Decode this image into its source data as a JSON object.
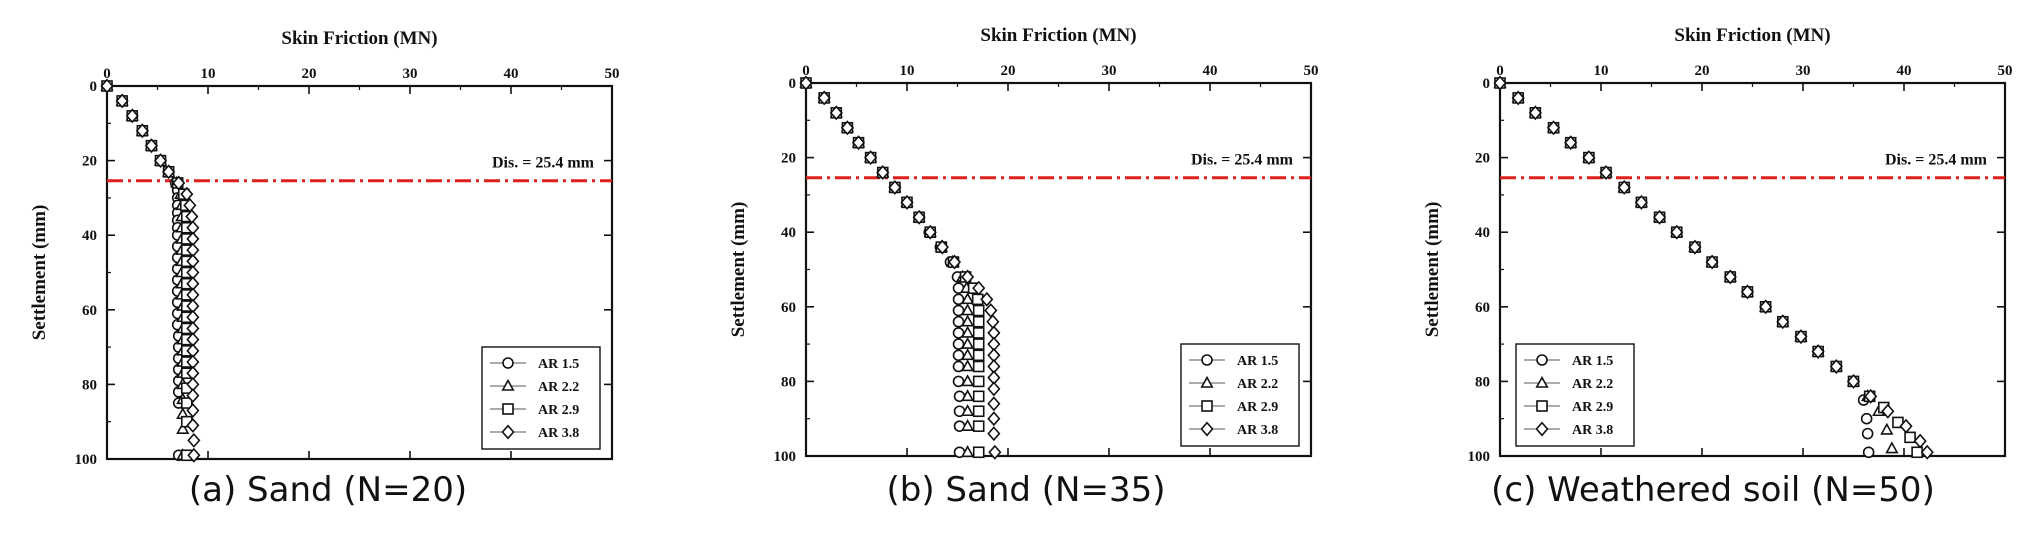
{
  "chart_data": [
    {
      "type": "scatter",
      "caption": "(a) Sand (N=20)",
      "title": "Skin Friction (MN)",
      "xlabel": "Skin Friction (MN)",
      "ylabel": "Settlement (mm)",
      "xlim": [
        0,
        50
      ],
      "ylim": [
        0,
        100
      ],
      "x_ticks": [
        "0",
        "10",
        "20",
        "30",
        "40",
        "50"
      ],
      "y_ticks": [
        "0",
        "20",
        "40",
        "60",
        "80",
        "100"
      ],
      "x_axis_position": "top",
      "y_axis_inverted": true,
      "grid": false,
      "legend_position": "bottom-right",
      "reference_line": {
        "label": "Dis. = 25.4 mm",
        "y": 25.4,
        "color": "#e0201b",
        "style": "dash-dot"
      },
      "series": [
        {
          "name": "AR 1.5",
          "marker": "circle",
          "x": [
            0,
            1.5,
            2.5,
            3.5,
            4.4,
            5.3,
            6.1,
            6.8,
            7.0,
            7.0,
            7.0,
            7.0,
            7.0,
            7.0,
            7.0,
            7.0,
            7.0,
            7.0,
            7.0,
            7.0,
            7.0,
            7.0,
            7.0,
            7.1,
            7.1,
            7.1,
            7.1,
            7.1,
            7.1,
            7.1,
            7.1
          ],
          "y": [
            0,
            4,
            8,
            12,
            16,
            20,
            23,
            26,
            28,
            30,
            32,
            34,
            36,
            38,
            40,
            43,
            46,
            49,
            52,
            55,
            58,
            61,
            64,
            67,
            70,
            73,
            76,
            79,
            82,
            85,
            99
          ]
        },
        {
          "name": "AR 2.2",
          "marker": "triangle",
          "x": [
            0,
            1.5,
            2.5,
            3.5,
            4.4,
            5.3,
            6.1,
            6.9,
            7.3,
            7.4,
            7.4,
            7.4,
            7.4,
            7.4,
            7.4,
            7.4,
            7.4,
            7.4,
            7.5,
            7.5,
            7.5,
            7.5,
            7.5,
            7.5,
            7.5,
            7.5,
            7.5,
            7.5,
            7.5,
            7.5
          ],
          "y": [
            0,
            4,
            8,
            12,
            16,
            20,
            23,
            26,
            29,
            32,
            35,
            38,
            41,
            44,
            47,
            50,
            53,
            56,
            59,
            62,
            65,
            68,
            71,
            74,
            77,
            80,
            84,
            88,
            92,
            99
          ]
        },
        {
          "name": "AR 2.9",
          "marker": "square",
          "x": [
            0,
            1.5,
            2.5,
            3.5,
            4.4,
            5.3,
            6.1,
            7.0,
            7.6,
            7.8,
            7.9,
            7.9,
            7.9,
            7.9,
            7.9,
            7.9,
            7.9,
            7.9,
            7.9,
            7.9,
            7.9,
            7.9,
            7.9,
            7.9,
            7.9,
            7.9,
            7.9,
            7.9,
            7.9
          ],
          "y": [
            0,
            4,
            8,
            12,
            16,
            20,
            23,
            26,
            29,
            32,
            35,
            38,
            41,
            44,
            47,
            50,
            53,
            56,
            59,
            62,
            65,
            68,
            71,
            74,
            77,
            81,
            85,
            90,
            99
          ]
        },
        {
          "name": "AR 3.8",
          "marker": "diamond",
          "x": [
            0,
            1.5,
            2.5,
            3.5,
            4.4,
            5.3,
            6.1,
            7.1,
            7.9,
            8.2,
            8.4,
            8.5,
            8.5,
            8.5,
            8.5,
            8.5,
            8.5,
            8.5,
            8.5,
            8.5,
            8.5,
            8.5,
            8.5,
            8.5,
            8.5,
            8.5,
            8.5,
            8.5,
            8.5,
            8.6,
            8.6
          ],
          "y": [
            0,
            4,
            8,
            12,
            16,
            20,
            23,
            26,
            29,
            32,
            35,
            38,
            41,
            44,
            47,
            50,
            53,
            56,
            59,
            62,
            65,
            68,
            71,
            74,
            77,
            80,
            83,
            87,
            91,
            95,
            99
          ]
        }
      ]
    },
    {
      "type": "scatter",
      "caption": "(b) Sand (N=35)",
      "title": "Skin Friction (MN)",
      "xlabel": "Skin Friction (MN)",
      "ylabel": "Settlement (mm)",
      "xlim": [
        0,
        50
      ],
      "ylim": [
        0,
        100
      ],
      "x_ticks": [
        "0",
        "10",
        "20",
        "30",
        "40",
        "50"
      ],
      "y_ticks": [
        "0",
        "20",
        "40",
        "60",
        "80",
        "100"
      ],
      "x_axis_position": "top",
      "y_axis_inverted": true,
      "grid": false,
      "legend_position": "bottom-right",
      "reference_line": {
        "label": "Dis. = 25.4 mm",
        "y": 25.4,
        "color": "#e0201b",
        "style": "dash-dot"
      },
      "series": [
        {
          "name": "AR 1.5",
          "marker": "circle",
          "x": [
            0,
            1.8,
            3.0,
            4.1,
            5.2,
            6.4,
            7.6,
            8.8,
            10.0,
            11.2,
            12.2,
            13.3,
            14.3,
            15.0,
            15.1,
            15.1,
            15.1,
            15.1,
            15.1,
            15.1,
            15.1,
            15.1,
            15.1,
            15.2,
            15.2,
            15.2,
            15.2
          ],
          "y": [
            0,
            4,
            8,
            12,
            16,
            20,
            24,
            28,
            32,
            36,
            40,
            44,
            48,
            52,
            55,
            58,
            61,
            64,
            67,
            70,
            73,
            76,
            80,
            84,
            88,
            92,
            99
          ]
        },
        {
          "name": "AR 2.2",
          "marker": "triangle",
          "x": [
            0,
            1.8,
            3.0,
            4.1,
            5.2,
            6.4,
            7.6,
            8.8,
            10.0,
            11.2,
            12.3,
            13.4,
            14.5,
            15.5,
            15.9,
            16.0,
            16.0,
            16.0,
            16.0,
            16.0,
            16.0,
            16.0,
            16.0,
            16.0,
            16.0,
            16.0,
            16.0
          ],
          "y": [
            0,
            4,
            8,
            12,
            16,
            20,
            24,
            28,
            32,
            36,
            40,
            44,
            48,
            52,
            55,
            58,
            61,
            64,
            67,
            70,
            73,
            76,
            80,
            84,
            88,
            92,
            99
          ]
        },
        {
          "name": "AR 2.9",
          "marker": "square",
          "x": [
            0,
            1.8,
            3.0,
            4.1,
            5.2,
            6.4,
            7.6,
            8.8,
            10.0,
            11.2,
            12.3,
            13.4,
            14.6,
            15.8,
            16.6,
            17.0,
            17.1,
            17.1,
            17.1,
            17.1,
            17.1,
            17.1,
            17.1,
            17.1,
            17.1,
            17.1,
            17.1
          ],
          "y": [
            0,
            4,
            8,
            12,
            16,
            20,
            24,
            28,
            32,
            36,
            40,
            44,
            48,
            52,
            55,
            58,
            61,
            64,
            67,
            70,
            73,
            76,
            80,
            84,
            88,
            92,
            99
          ]
        },
        {
          "name": "AR 3.8",
          "marker": "diamond",
          "x": [
            0,
            1.8,
            3.0,
            4.1,
            5.2,
            6.4,
            7.6,
            8.8,
            10.0,
            11.2,
            12.3,
            13.5,
            14.7,
            16.0,
            17.1,
            17.9,
            18.3,
            18.5,
            18.6,
            18.6,
            18.6,
            18.6,
            18.6,
            18.6,
            18.6,
            18.6,
            18.6,
            18.7
          ],
          "y": [
            0,
            4,
            8,
            12,
            16,
            20,
            24,
            28,
            32,
            36,
            40,
            44,
            48,
            52,
            55,
            58,
            61,
            64,
            67,
            70,
            73,
            76,
            79,
            82,
            86,
            90,
            94,
            99
          ]
        }
      ]
    },
    {
      "type": "scatter",
      "caption": "(c) Weathered soil (N=50)",
      "title": "Skin Friction (MN)",
      "xlabel": "Skin Friction (MN)",
      "ylabel": "Settlement (mm)",
      "xlim": [
        0,
        50
      ],
      "ylim": [
        0,
        100
      ],
      "x_ticks": [
        "0",
        "10",
        "20",
        "30",
        "40",
        "50"
      ],
      "y_ticks": [
        "0",
        "20",
        "40",
        "60",
        "80",
        "100"
      ],
      "x_axis_position": "top",
      "y_axis_inverted": true,
      "grid": false,
      "legend_position": "bottom-left",
      "reference_line": {
        "label": "Dis. = 25.4 mm",
        "y": 25.4,
        "color": "#e0201b",
        "style": "dash-dot"
      },
      "series": [
        {
          "name": "AR 1.5",
          "marker": "circle",
          "x": [
            0,
            1.8,
            3.5,
            5.3,
            7.0,
            8.8,
            10.5,
            12.3,
            14.0,
            15.8,
            17.5,
            19.3,
            21.0,
            22.8,
            24.5,
            26.3,
            28.0,
            29.8,
            31.5,
            33.3,
            35.0,
            36.0,
            36.3,
            36.4,
            36.5
          ],
          "y": [
            0,
            4,
            8,
            12,
            16,
            20,
            24,
            28,
            32,
            36,
            40,
            44,
            48,
            52,
            56,
            60,
            64,
            68,
            72,
            76,
            80,
            85,
            90,
            94,
            99
          ]
        },
        {
          "name": "AR 2.2",
          "marker": "triangle",
          "x": [
            0,
            1.8,
            3.5,
            5.3,
            7.0,
            8.8,
            10.5,
            12.3,
            14.0,
            15.8,
            17.5,
            19.3,
            21.0,
            22.8,
            24.5,
            26.3,
            28.0,
            29.8,
            31.5,
            33.3,
            35.0,
            36.4,
            37.5,
            38.3,
            38.8
          ],
          "y": [
            0,
            4,
            8,
            12,
            16,
            20,
            24,
            28,
            32,
            36,
            40,
            44,
            48,
            52,
            56,
            60,
            64,
            68,
            72,
            76,
            80,
            84,
            88,
            93,
            98
          ]
        },
        {
          "name": "AR 2.9",
          "marker": "square",
          "x": [
            0,
            1.8,
            3.5,
            5.3,
            7.0,
            8.8,
            10.5,
            12.3,
            14.0,
            15.8,
            17.5,
            19.3,
            21.0,
            22.8,
            24.5,
            26.3,
            28.0,
            29.8,
            31.5,
            33.3,
            35.0,
            36.6,
            38.0,
            39.4,
            40.6,
            41.3
          ],
          "y": [
            0,
            4,
            8,
            12,
            16,
            20,
            24,
            28,
            32,
            36,
            40,
            44,
            48,
            52,
            56,
            60,
            64,
            68,
            72,
            76,
            80,
            84,
            87,
            91,
            95,
            99
          ]
        },
        {
          "name": "AR 3.8",
          "marker": "diamond",
          "x": [
            0,
            1.8,
            3.5,
            5.3,
            7.0,
            8.8,
            10.5,
            12.3,
            14.0,
            15.8,
            17.5,
            19.3,
            21.0,
            22.8,
            24.5,
            26.3,
            28.0,
            29.8,
            31.5,
            33.3,
            35.0,
            36.7,
            38.4,
            40.2,
            41.6,
            42.3
          ],
          "y": [
            0,
            4,
            8,
            12,
            16,
            20,
            24,
            28,
            32,
            36,
            40,
            44,
            48,
            52,
            56,
            60,
            64,
            68,
            72,
            76,
            80,
            84,
            88,
            92,
            96,
            99
          ]
        }
      ]
    }
  ]
}
